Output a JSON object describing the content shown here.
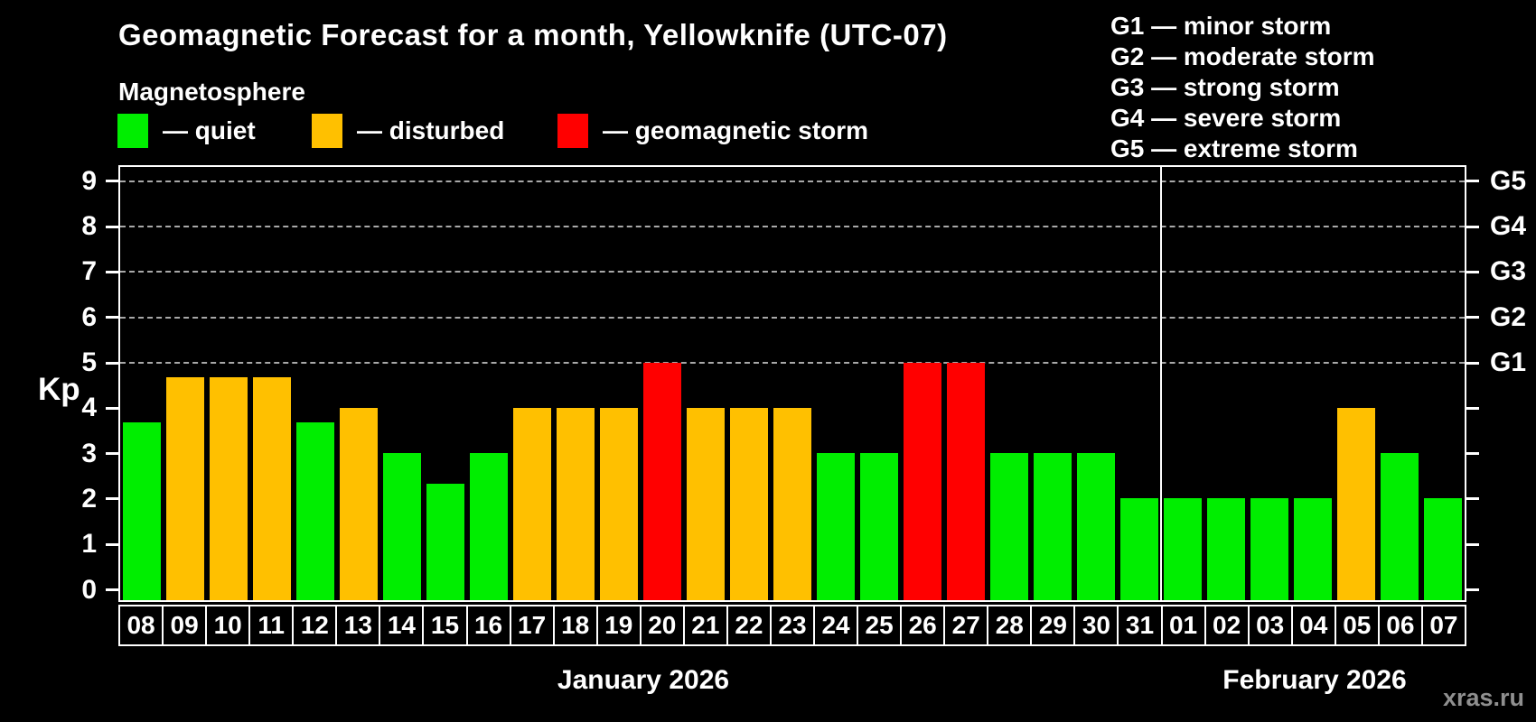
{
  "header": {
    "title": "Geomagnetic Forecast for a month, Yellowknife (UTC-07)",
    "subtitle": "Magnetosphere"
  },
  "legend": {
    "items": [
      {
        "key": "quiet",
        "label": "— quiet"
      },
      {
        "key": "disturbed",
        "label": "— disturbed"
      },
      {
        "key": "storm",
        "label": "— geomagnetic storm"
      }
    ]
  },
  "g_legend": {
    "lines": [
      "G1 — minor storm",
      "G2 — moderate storm",
      "G3 — strong storm",
      "G4 — severe storm",
      "G5 — extreme storm"
    ]
  },
  "axes": {
    "kp_label": "Kp",
    "left_ticks": [
      0,
      1,
      2,
      3,
      4,
      5,
      6,
      7,
      8,
      9
    ],
    "right_labels": [
      {
        "label": "G1",
        "kp": 5
      },
      {
        "label": "G2",
        "kp": 6
      },
      {
        "label": "G3",
        "kp": 7
      },
      {
        "label": "G4",
        "kp": 8
      },
      {
        "label": "G5",
        "kp": 9
      }
    ]
  },
  "chart_data": {
    "type": "bar",
    "title": "Geomagnetic Forecast for a month, Yellowknife (UTC-07)",
    "xlabel": "",
    "ylabel": "Kp",
    "ylim": [
      0,
      9.3
    ],
    "grid": "dashed horizontal lines at Kp 5-9 only",
    "gridlines_kp": [
      5,
      6,
      7,
      8,
      9
    ],
    "categories": [
      "08",
      "09",
      "10",
      "11",
      "12",
      "13",
      "14",
      "15",
      "16",
      "17",
      "18",
      "19",
      "20",
      "21",
      "22",
      "23",
      "24",
      "25",
      "26",
      "27",
      "28",
      "29",
      "30",
      "31",
      "01",
      "02",
      "03",
      "04",
      "05",
      "06",
      "07"
    ],
    "values": [
      3.67,
      4.67,
      4.67,
      4.67,
      3.67,
      4,
      3,
      2.33,
      3,
      4,
      4,
      4,
      5,
      4,
      4,
      4,
      3,
      3,
      5,
      5,
      3,
      3,
      3,
      2,
      2,
      2,
      2,
      2,
      4,
      3,
      2
    ],
    "states": [
      "quiet",
      "disturbed",
      "disturbed",
      "disturbed",
      "quiet",
      "disturbed",
      "quiet",
      "quiet",
      "quiet",
      "disturbed",
      "disturbed",
      "disturbed",
      "storm",
      "disturbed",
      "disturbed",
      "disturbed",
      "quiet",
      "quiet",
      "storm",
      "storm",
      "quiet",
      "quiet",
      "quiet",
      "quiet",
      "quiet",
      "quiet",
      "quiet",
      "quiet",
      "disturbed",
      "quiet",
      "quiet"
    ],
    "colors": {
      "quiet": "#00ee00",
      "disturbed": "#ffc000",
      "storm": "#ff0000",
      "grid": "#a8a8a8",
      "axis": "#ffffff",
      "background": "#000000"
    },
    "month_boundary_after_index": 23,
    "months": [
      {
        "label": "January 2026",
        "days": 24
      },
      {
        "label": "February 2026",
        "days": 7
      }
    ]
  },
  "footer": {
    "watermark": "xras.ru"
  }
}
